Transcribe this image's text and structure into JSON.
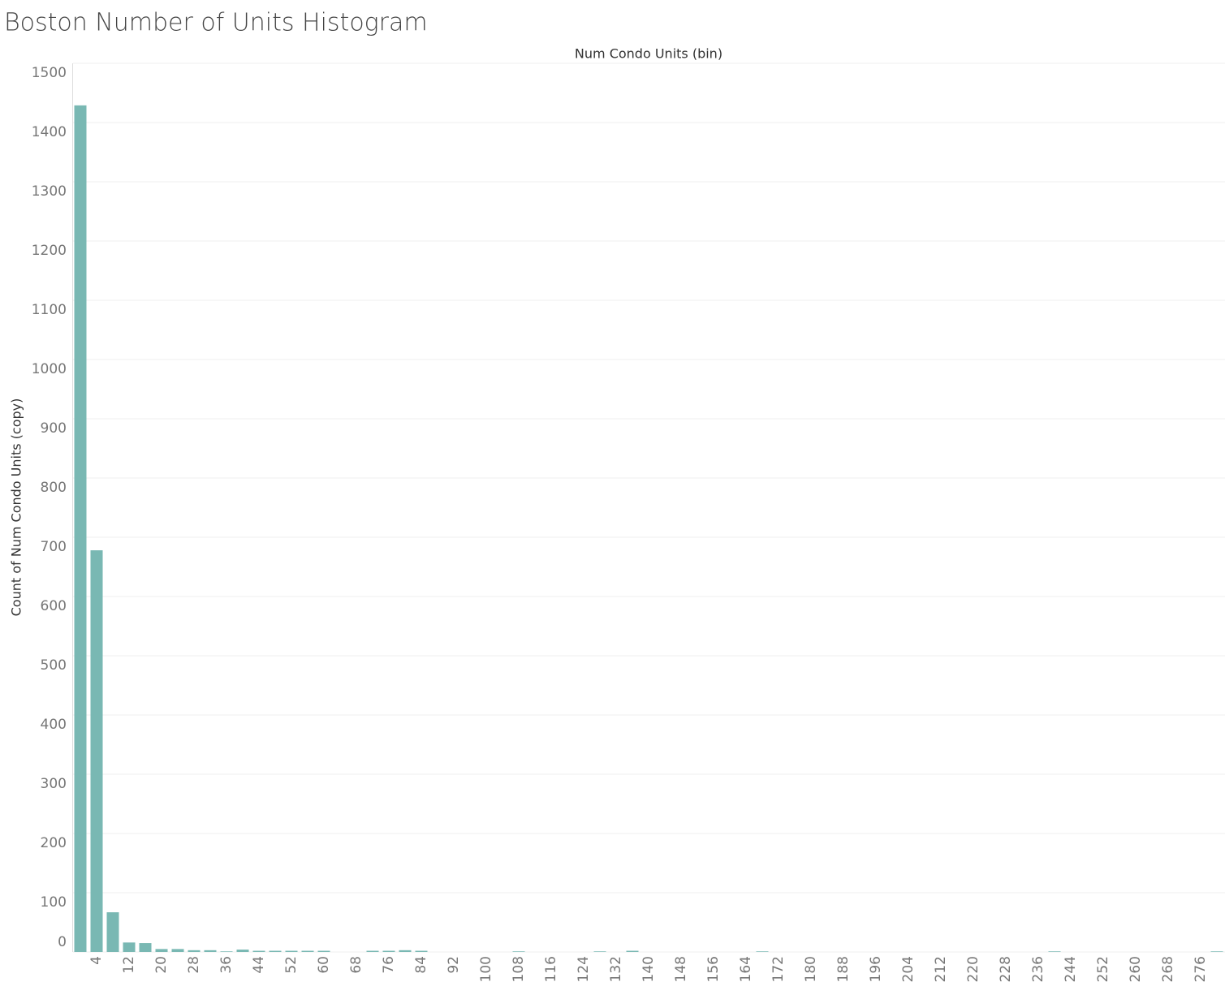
{
  "chart_data": {
    "type": "bar",
    "title": "Boston Number of Units Histogram",
    "x_label": "Num Condo Units (bin)",
    "y_label": "Count of Num Condo Units (copy)",
    "categories": [
      null,
      "4",
      null,
      "12",
      null,
      "20",
      null,
      "28",
      null,
      "36",
      null,
      "44",
      null,
      "52",
      null,
      "60",
      null,
      "68",
      null,
      "76",
      null,
      "84",
      null,
      "92",
      null,
      "100",
      null,
      "108",
      null,
      "116",
      null,
      "124",
      null,
      "132",
      null,
      "140",
      null,
      "148",
      null,
      "156",
      null,
      "164",
      null,
      "172",
      null,
      "180",
      null,
      "188",
      null,
      "196",
      null,
      "204",
      null,
      "212",
      null,
      "220",
      null,
      "228",
      null,
      "236",
      null,
      "244",
      null,
      "252",
      null,
      "260",
      null,
      "268",
      null,
      "276",
      null
    ],
    "values": [
      1429,
      678,
      67,
      16,
      15,
      5,
      5,
      3,
      3,
      1,
      4,
      2,
      2,
      2,
      2,
      2,
      0,
      0,
      2,
      2,
      3,
      2,
      0,
      0,
      0,
      0,
      0,
      1,
      0,
      0,
      0,
      0,
      1,
      0,
      2,
      0,
      0,
      0,
      0,
      0,
      0,
      0,
      1,
      0,
      0,
      0,
      0,
      0,
      0,
      0,
      0,
      0,
      0,
      0,
      0,
      0,
      0,
      0,
      0,
      0,
      1,
      0,
      0,
      0,
      0,
      0,
      0,
      0,
      0,
      0,
      1
    ],
    "color": "#79b8b3",
    "ylim": [
      0,
      1500
    ],
    "yticks": [
      0,
      100,
      200,
      300,
      400,
      500,
      600,
      700,
      800,
      900,
      1000,
      1100,
      1200,
      1300,
      1400,
      1500
    ],
    "grid": true
  }
}
